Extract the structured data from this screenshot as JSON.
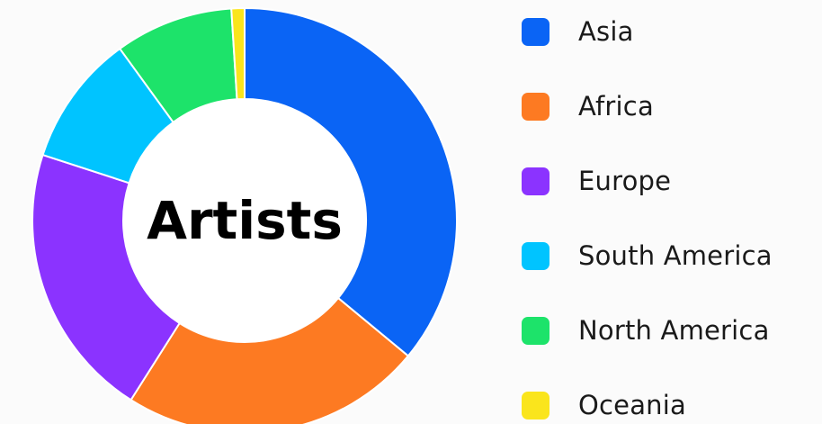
{
  "chart_data": {
    "type": "pie",
    "title": "Artists",
    "categories": [
      "Asia",
      "Africa",
      "Europe",
      "South America",
      "North America",
      "Oceania"
    ],
    "values": [
      36,
      23,
      21,
      10,
      9,
      1
    ],
    "colors": [
      "#0a64f5",
      "#fd7a22",
      "#8b33ff",
      "#00c4ff",
      "#1de36a",
      "#fae51c"
    ],
    "legend_position": "right"
  },
  "legend": {
    "items": [
      {
        "label": "Asia",
        "color": "#0a64f5"
      },
      {
        "label": "Africa",
        "color": "#fd7a22"
      },
      {
        "label": "Europe",
        "color": "#8b33ff"
      },
      {
        "label": "South America",
        "color": "#00c4ff"
      },
      {
        "label": "North America",
        "color": "#1de36a"
      },
      {
        "label": "Oceania",
        "color": "#fae51c"
      }
    ]
  }
}
